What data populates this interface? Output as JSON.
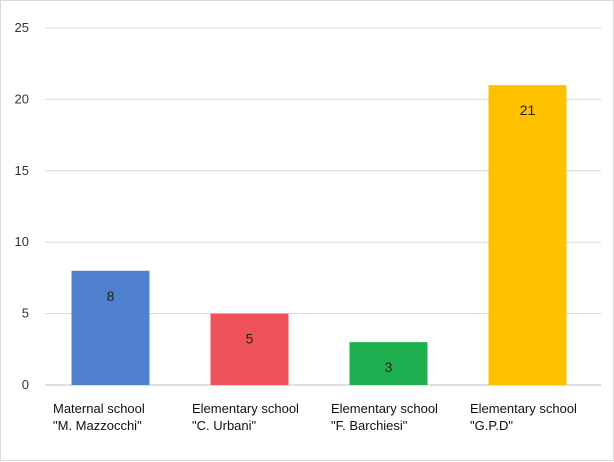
{
  "chart_data": {
    "type": "bar",
    "title": "",
    "xlabel": "",
    "ylabel": "",
    "categories": [
      [
        "Maternal school",
        "\"M. Mazzocchi\""
      ],
      [
        "Elementary school",
        "\"C. Urbani\""
      ],
      [
        "Elementary school",
        "\"F. Barchiesi\""
      ],
      [
        "Elementary school",
        "\"G.P.D\""
      ]
    ],
    "values": [
      8,
      5,
      3,
      21
    ],
    "colors": [
      "#4f81cf",
      "#f0525a",
      "#1fae4f",
      "#ffc000"
    ],
    "data_labels": [
      "8",
      "5",
      "3",
      "21"
    ],
    "ylim": [
      0,
      25
    ],
    "yticks": [
      0,
      5,
      10,
      15,
      20,
      25
    ],
    "grid": true,
    "legend": "none"
  }
}
